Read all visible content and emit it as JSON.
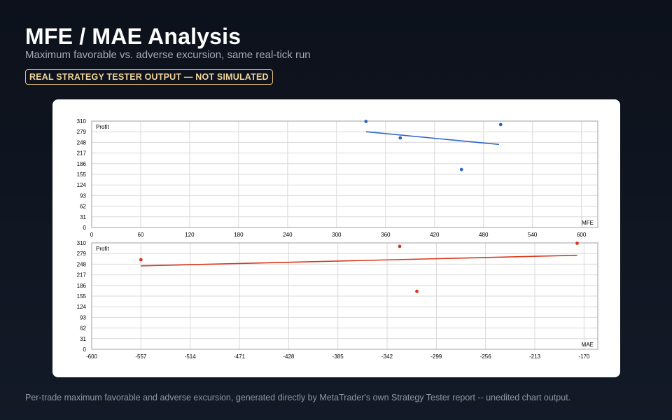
{
  "header": {
    "title": "MFE / MAE Analysis",
    "subtitle": "Maximum favorable vs. adverse excursion, same real-tick run",
    "badge": "REAL STRATEGY TESTER OUTPUT — NOT SIMULATED"
  },
  "footer": {
    "caption": "Per-trade maximum favorable and adverse excursion, generated directly by MetaTrader's own Strategy Tester report -- unedited chart output."
  },
  "colors": {
    "mfe": "#2f63c8",
    "mae": "#d9361a",
    "grid": "#d9d9d9",
    "frame": "#a0a0a0"
  },
  "chart_data": [
    {
      "type": "scatter",
      "ylabel": "Profit",
      "xlabel": "MFE",
      "xlim": [
        0,
        620
      ],
      "ylim": [
        0,
        310
      ],
      "x_ticks": [
        0,
        60,
        120,
        180,
        240,
        300,
        360,
        420,
        480,
        540,
        600
      ],
      "y_ticks": [
        0,
        31,
        62,
        93,
        124,
        155,
        186,
        217,
        248,
        279,
        310
      ],
      "grid": true,
      "series": [
        {
          "points": [
            {
              "x": 336,
              "y": 309
            },
            {
              "x": 378,
              "y": 261
            },
            {
              "x": 453,
              "y": 169
            },
            {
              "x": 501,
              "y": 300
            }
          ],
          "trendline": [
            {
              "x": 336,
              "y": 279
            },
            {
              "x": 499,
              "y": 242
            }
          ]
        }
      ]
    },
    {
      "type": "scatter",
      "ylabel": "Profit",
      "xlabel": "MAE",
      "xlim": [
        -600,
        -158
      ],
      "ylim": [
        0,
        310
      ],
      "x_ticks": [
        -600,
        -557,
        -514,
        -471,
        -428,
        -385,
        -342,
        -299,
        -256,
        -213,
        -170
      ],
      "y_ticks": [
        0,
        31,
        62,
        93,
        124,
        155,
        186,
        217,
        248,
        279,
        310
      ],
      "grid": true,
      "series": [
        {
          "points": [
            {
              "x": -557,
              "y": 261
            },
            {
              "x": -331,
              "y": 300
            },
            {
              "x": -316,
              "y": 169
            },
            {
              "x": -176,
              "y": 309
            }
          ],
          "trendline": [
            {
              "x": -557,
              "y": 243
            },
            {
              "x": -176,
              "y": 274
            }
          ]
        }
      ]
    }
  ]
}
